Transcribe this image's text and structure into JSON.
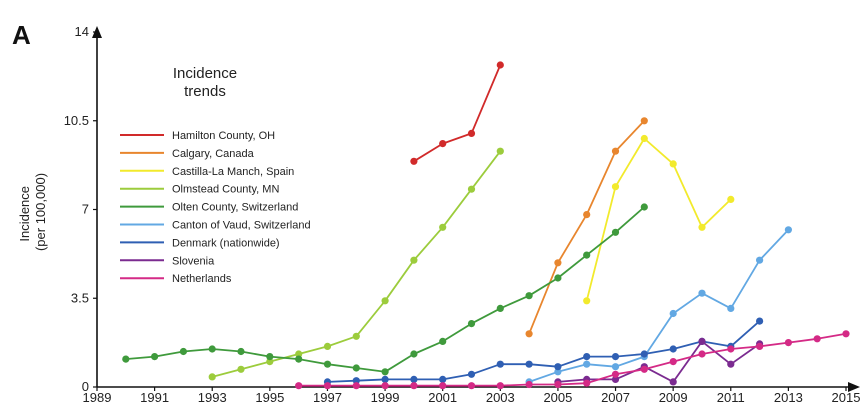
{
  "panel_label": "A",
  "chart_data": {
    "type": "line",
    "title": "",
    "xlabel": "",
    "ylabel": "Incidence (per 100,000)",
    "ylabel_lines": [
      "Incidence",
      "(per 100,000)"
    ],
    "xlim": [
      1989,
      2015
    ],
    "ylim": [
      0,
      14
    ],
    "xticks": [
      1989,
      1991,
      1993,
      1995,
      1997,
      1999,
      2001,
      2003,
      2005,
      2007,
      2009,
      2011,
      2013,
      2015
    ],
    "yticks": [
      0,
      3.5,
      7,
      10.5,
      14
    ],
    "ytick_labels": [
      "0",
      "3.5",
      "7",
      "10.5",
      "14"
    ],
    "grid": false,
    "legend": {
      "title_lines": [
        "Incidence",
        "trends"
      ],
      "placement": "top-left"
    },
    "series": [
      {
        "name": "Hamilton County, OH",
        "color": "#d12a2a",
        "x": [
          2000,
          2001,
          2002,
          2003
        ],
        "y": [
          8.9,
          9.6,
          10.0,
          12.7
        ]
      },
      {
        "name": "Calgary, Canada",
        "color": "#e8862e",
        "x": [
          2004,
          2005,
          2006,
          2007,
          2008
        ],
        "y": [
          2.1,
          4.9,
          6.8,
          9.3,
          10.5
        ]
      },
      {
        "name": "Castilla-La Manch, Spain",
        "color": "#f2ea2c",
        "x": [
          2006,
          2007,
          2008,
          2009,
          2010,
          2011
        ],
        "y": [
          3.4,
          7.9,
          9.8,
          8.8,
          6.3,
          7.4
        ]
      },
      {
        "name": "Olmstead County, MN",
        "color": "#9ccc3c",
        "x": [
          1993,
          1994,
          1995,
          1996,
          1997,
          1998,
          1999,
          2000,
          2001,
          2002,
          2003
        ],
        "y": [
          0.4,
          0.7,
          1.0,
          1.3,
          1.6,
          2.0,
          3.4,
          5.0,
          6.3,
          7.8,
          9.3
        ]
      },
      {
        "name": "Olten County, Switzerland",
        "color": "#3f9a3c",
        "x": [
          1990,
          1991,
          1992,
          1993,
          1994,
          1995,
          1996,
          1997,
          1998,
          1999,
          2000,
          2001,
          2002,
          2003,
          2004,
          2005,
          2006,
          2007,
          2008
        ],
        "y": [
          1.1,
          1.2,
          1.4,
          1.5,
          1.4,
          1.2,
          1.1,
          0.9,
          0.75,
          0.6,
          1.3,
          1.8,
          2.5,
          3.1,
          3.6,
          4.3,
          5.2,
          6.1,
          7.1
        ]
      },
      {
        "name": "Canton of Vaud, Switzerland",
        "color": "#62a8e3",
        "x": [
          2004,
          2005,
          2006,
          2007,
          2008,
          2009,
          2010,
          2011,
          2012,
          2013
        ],
        "y": [
          0.2,
          0.6,
          0.9,
          0.8,
          1.2,
          2.9,
          3.7,
          3.1,
          5.0,
          6.2
        ]
      },
      {
        "name": "Denmark (nationwide)",
        "color": "#2f5fb3",
        "x": [
          1997,
          1998,
          1999,
          2000,
          2001,
          2002,
          2003,
          2004,
          2005,
          2006,
          2007,
          2008,
          2009,
          2010,
          2011,
          2012
        ],
        "y": [
          0.2,
          0.25,
          0.3,
          0.3,
          0.3,
          0.5,
          0.9,
          0.9,
          0.8,
          1.2,
          1.2,
          1.3,
          1.5,
          1.8,
          1.6,
          2.6
        ]
      },
      {
        "name": "Slovenia",
        "color": "#7b2b90",
        "x": [
          2005,
          2006,
          2007,
          2008,
          2009,
          2010,
          2011,
          2012
        ],
        "y": [
          0.2,
          0.3,
          0.3,
          0.8,
          0.2,
          1.8,
          0.9,
          1.7
        ]
      },
      {
        "name": "Netherlands",
        "color": "#d42a86",
        "x": [
          1996,
          1997,
          1998,
          1999,
          2000,
          2001,
          2002,
          2003,
          2004,
          2005,
          2006,
          2007,
          2008,
          2009,
          2010,
          2011,
          2012,
          2013,
          2014,
          2015
        ],
        "y": [
          0.05,
          0.05,
          0.05,
          0.05,
          0.05,
          0.05,
          0.05,
          0.05,
          0.1,
          0.1,
          0.15,
          0.5,
          0.7,
          1.0,
          1.3,
          1.5,
          1.6,
          1.75,
          1.9,
          2.1
        ]
      }
    ]
  }
}
